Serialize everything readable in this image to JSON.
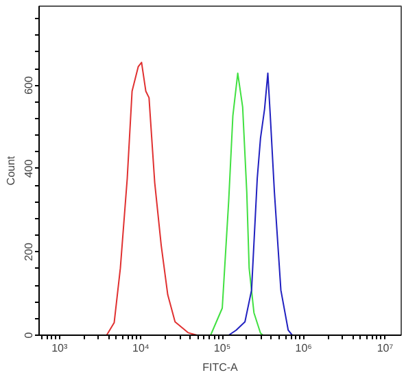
{
  "chart_data": {
    "type": "line",
    "xlabel": "FITC-A",
    "ylabel": "Count",
    "log": "x",
    "grid": false,
    "marker": "none",
    "line_style": "solid",
    "xlim": [
      562,
      15800000
    ],
    "ylim": [
      0,
      790
    ],
    "xticks": [
      {
        "value": 600,
        "label": null
      },
      {
        "value": 700,
        "label": null
      },
      {
        "value": 800,
        "label": null
      },
      {
        "value": 900,
        "label": null
      },
      {
        "value": 1000,
        "label": "10³"
      },
      {
        "value": 2000,
        "label": null
      },
      {
        "value": 3000,
        "label": null
      },
      {
        "value": 4000,
        "label": null
      },
      {
        "value": 5000,
        "label": null
      },
      {
        "value": 6000,
        "label": null
      },
      {
        "value": 7000,
        "label": null
      },
      {
        "value": 8000,
        "label": null
      },
      {
        "value": 9000,
        "label": null
      },
      {
        "value": 10000,
        "label": "10⁴"
      },
      {
        "value": 20000,
        "label": null
      },
      {
        "value": 30000,
        "label": null
      },
      {
        "value": 40000,
        "label": null
      },
      {
        "value": 50000,
        "label": null
      },
      {
        "value": 60000,
        "label": null
      },
      {
        "value": 70000,
        "label": null
      },
      {
        "value": 80000,
        "label": null
      },
      {
        "value": 90000,
        "label": null
      },
      {
        "value": 100000,
        "label": "10⁵"
      },
      {
        "value": 200000,
        "label": null
      },
      {
        "value": 300000,
        "label": null
      },
      {
        "value": 400000,
        "label": null
      },
      {
        "value": 500000,
        "label": null
      },
      {
        "value": 600000,
        "label": null
      },
      {
        "value": 700000,
        "label": null
      },
      {
        "value": 800000,
        "label": null
      },
      {
        "value": 900000,
        "label": null
      },
      {
        "value": 1000000,
        "label": "10⁶"
      },
      {
        "value": 2000000,
        "label": null
      },
      {
        "value": 3000000,
        "label": null
      },
      {
        "value": 4000000,
        "label": null
      },
      {
        "value": 5000000,
        "label": null
      },
      {
        "value": 6000000,
        "label": null
      },
      {
        "value": 7000000,
        "label": null
      },
      {
        "value": 8000000,
        "label": null
      },
      {
        "value": 9000000,
        "label": null
      },
      {
        "value": 10000000,
        "label": "10⁷"
      }
    ],
    "yticks": [
      0,
      {
        "value": 40,
        "label": null
      },
      {
        "value": 80,
        "label": null
      },
      {
        "value": 120,
        "label": null
      },
      {
        "value": 160,
        "label": null
      },
      200,
      {
        "value": 240,
        "label": null
      },
      {
        "value": 280,
        "label": null
      },
      {
        "value": 320,
        "label": null
      },
      {
        "value": 360,
        "label": null
      },
      400,
      {
        "value": 440,
        "label": null
      },
      {
        "value": 480,
        "label": null
      },
      {
        "value": 520,
        "label": null
      },
      {
        "value": 560,
        "label": null
      },
      600,
      {
        "value": 640,
        "label": null
      },
      {
        "value": 680,
        "label": null
      },
      {
        "value": 720,
        "label": null
      },
      {
        "value": 760,
        "label": null
      }
    ],
    "series": [
      {
        "color": "#e03030",
        "x": [
          3800,
          4700,
          5600,
          6800,
          7800,
          9300,
          10200,
          11500,
          12600,
          14800,
          17800,
          21400,
          26300,
          38000,
          49000
        ],
        "values": [
          0,
          30,
          161,
          376,
          586,
          645,
          655,
          586,
          570,
          366,
          215,
          97,
          32,
          6,
          0
        ]
      },
      {
        "color": "#40e040",
        "x": [
          72000,
          100000,
          120000,
          135000,
          155000,
          178000,
          200000,
          214000,
          245000,
          295000,
          316000
        ],
        "values": [
          0,
          65,
          323,
          527,
          629,
          548,
          344,
          161,
          54,
          5,
          0
        ]
      },
      {
        "color": "#2020c0",
        "x": [
          120000,
          148000,
          190000,
          229000,
          269000,
          295000,
          331000,
          363000,
          389000,
          437000,
          525000,
          646000,
          724000
        ],
        "values": [
          0,
          12,
          32,
          108,
          376,
          473,
          543,
          629,
          527,
          344,
          108,
          12,
          0
        ]
      }
    ]
  }
}
